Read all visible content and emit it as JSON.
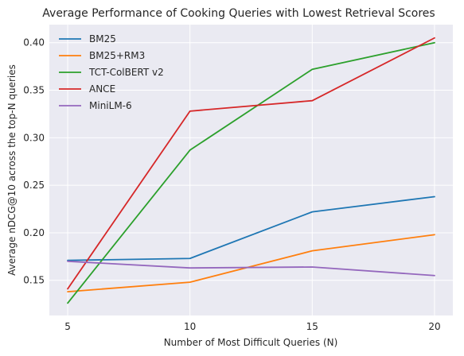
{
  "chart_data": {
    "type": "line",
    "title": "Average Performance of Cooking Queries with Lowest Retrieval Scores",
    "xlabel": "Number of Most Difficult Queries (N)",
    "ylabel": "Average nDCG@10 across the top-N queries",
    "x": [
      5,
      10,
      15,
      20
    ],
    "xlim": [
      4.25,
      20.75
    ],
    "ylim": [
      0.113,
      0.419
    ],
    "xticks": [
      5,
      10,
      15,
      20
    ],
    "yticks": [
      0.15,
      0.2,
      0.25,
      0.3,
      0.35,
      0.4
    ],
    "grid": true,
    "legend_position": "top-left",
    "background": "#eaeaf2",
    "series": [
      {
        "name": "BM25",
        "color": "#1f77b4",
        "values": [
          0.171,
          0.173,
          0.222,
          0.238
        ]
      },
      {
        "name": "BM25+RM3",
        "color": "#ff7f0e",
        "values": [
          0.138,
          0.148,
          0.181,
          0.198
        ]
      },
      {
        "name": "TCT-ColBERT v2",
        "color": "#2ca02c",
        "values": [
          0.126,
          0.287,
          0.372,
          0.4
        ]
      },
      {
        "name": "ANCE",
        "color": "#d62728",
        "values": [
          0.141,
          0.328,
          0.339,
          0.405
        ]
      },
      {
        "name": "MiniLM-6",
        "color": "#9467bd",
        "values": [
          0.17,
          0.163,
          0.164,
          0.155
        ]
      }
    ]
  }
}
